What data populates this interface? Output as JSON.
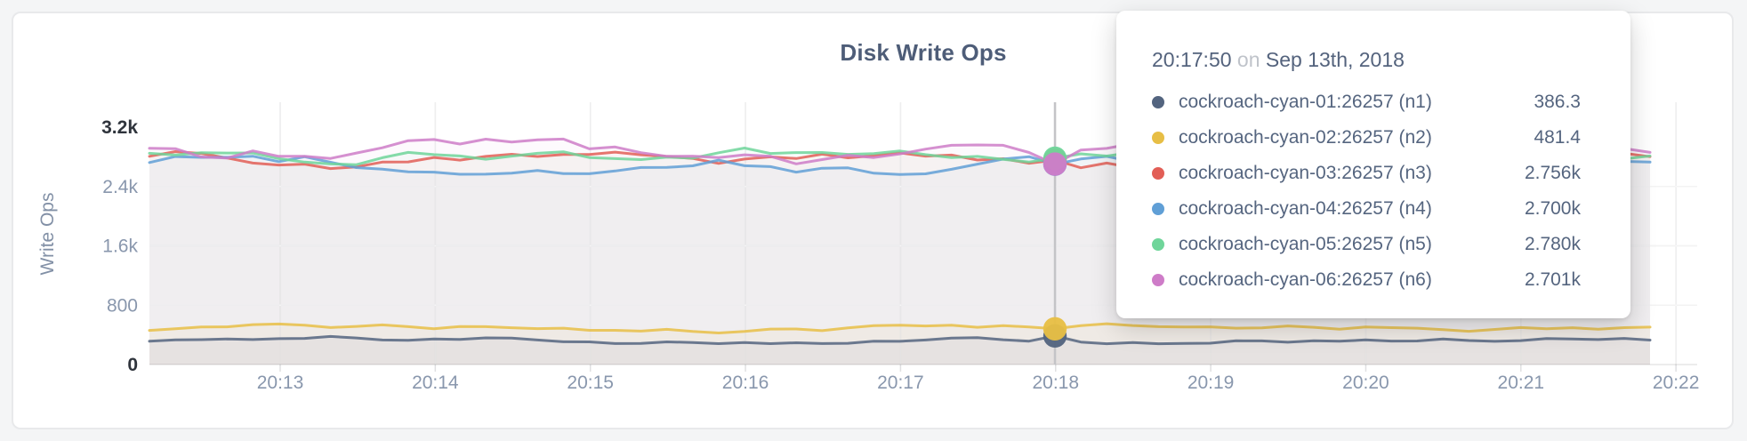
{
  "card": {
    "title": "Disk Write Ops"
  },
  "y_axis": {
    "label": "Write Ops",
    "ticks": [
      {
        "label": "0",
        "value": 0,
        "emphasis": true
      },
      {
        "label": "800",
        "value": 800,
        "emphasis": false
      },
      {
        "label": "1.6k",
        "value": 1600,
        "emphasis": false
      },
      {
        "label": "2.4k",
        "value": 2400,
        "emphasis": false
      },
      {
        "label": "3.2k",
        "value": 3200,
        "emphasis": true
      }
    ]
  },
  "x_axis": {
    "ticks": [
      "20:13",
      "20:14",
      "20:15",
      "20:16",
      "20:17",
      "20:18",
      "20:19",
      "20:20",
      "20:21",
      "20:22"
    ]
  },
  "tooltip": {
    "time": "20:17:50",
    "conjunction": "on",
    "date": "Sep 13th, 2018",
    "rows": [
      {
        "name": "cockroach-cyan-01:26257 (n1)",
        "value": "386.3",
        "color": "#53647F"
      },
      {
        "name": "cockroach-cyan-02:26257 (n2)",
        "value": "481.4",
        "color": "#E7BE45"
      },
      {
        "name": "cockroach-cyan-03:26257 (n3)",
        "value": "2.756k",
        "color": "#E25E56"
      },
      {
        "name": "cockroach-cyan-04:26257 (n4)",
        "value": "2.700k",
        "color": "#609FD6"
      },
      {
        "name": "cockroach-cyan-05:26257 (n5)",
        "value": "2.780k",
        "color": "#6FD59A"
      },
      {
        "name": "cockroach-cyan-06:26257 (n6)",
        "value": "2.701k",
        "color": "#CE7CC8"
      }
    ]
  },
  "colors": {
    "title_text": "#4e5d78",
    "axis_text": "#8997ad",
    "axis_text_emphasis": "#2f343c",
    "gridline": "#e0e0e2",
    "hover_guideline": "#c4c4c7"
  },
  "chart_data": {
    "type": "line",
    "title": "Disk Write Ops",
    "xlabel": "",
    "ylabel": "Write Ops",
    "ylim": [
      0,
      3200
    ],
    "y_ticks": [
      0,
      800,
      1600,
      2400,
      3200
    ],
    "x_ticks": [
      "20:13",
      "20:14",
      "20:15",
      "20:16",
      "20:17",
      "20:18",
      "20:19",
      "20:20",
      "20:21",
      "20:22"
    ],
    "x_range_approx": [
      "20:12:10",
      "20:21:50"
    ],
    "sample_interval_seconds": 10,
    "grid": true,
    "legend_position": "tooltip-only",
    "hover": {
      "time": "20:17:50",
      "date": "Sep 13th, 2018"
    },
    "series": [
      {
        "name": "cockroach-cyan-01:26257 (n1)",
        "color": "#53647F",
        "value_at_hover": 386.3,
        "approx_range": [
          280,
          400
        ]
      },
      {
        "name": "cockroach-cyan-02:26257 (n2)",
        "color": "#E7BE45",
        "value_at_hover": 481.4,
        "approx_range": [
          420,
          560
        ]
      },
      {
        "name": "cockroach-cyan-03:26257 (n3)",
        "color": "#E25E56",
        "value_at_hover": 2756,
        "approx_range": [
          2640,
          2930
        ]
      },
      {
        "name": "cockroach-cyan-04:26257 (n4)",
        "color": "#609FD6",
        "value_at_hover": 2700,
        "approx_range": [
          2560,
          2900
        ]
      },
      {
        "name": "cockroach-cyan-05:26257 (n5)",
        "color": "#6FD59A",
        "value_at_hover": 2780,
        "approx_range": [
          2680,
          3000
        ]
      },
      {
        "name": "cockroach-cyan-06:26257 (n6)",
        "color": "#CE7CC8",
        "value_at_hover": 2701,
        "approx_range": [
          2580,
          3040
        ]
      }
    ]
  }
}
